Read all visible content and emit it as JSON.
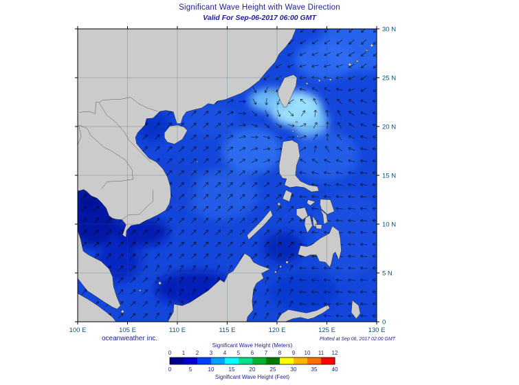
{
  "title": "Significant Wave Height with Wave Direction",
  "subtitle": "Valid For Sep-06-2017 06:00 GMT",
  "credit": "oceanweather inc.",
  "plotted_note": "Plotted at Sep 06, 2017 02:00 GMT",
  "axes": {
    "lon_ticks": [
      "100 E",
      "105 E",
      "110 E",
      "115 E",
      "120 E",
      "125 E",
      "130 E"
    ],
    "lat_ticks": [
      "30 N",
      "25 N",
      "20 N",
      "15 N",
      "10 N",
      "5 N",
      "0"
    ]
  },
  "colorbar": {
    "meters_label": "Significant Wave Height (Meters)",
    "feet_label": "Significant Wave Height (Feet)",
    "meters_ticks": [
      "0",
      "1",
      "2",
      "3",
      "4",
      "5",
      "6",
      "7",
      "8",
      "9",
      "10",
      "11",
      "12"
    ],
    "feet_ticks": [
      "0",
      "5",
      "10",
      "15",
      "20",
      "25",
      "30",
      "35",
      "40"
    ],
    "colors": [
      "#00008B",
      "#0000CD",
      "#0040FF",
      "#00A0FF",
      "#00FFFF",
      "#00E08C",
      "#00B22D",
      "#007A00",
      "#FFFF00",
      "#FFB400",
      "#FF6E00",
      "#FF0000"
    ]
  },
  "map": {
    "land_color": "#cbcbcb",
    "ocean_base_color": "#1347DC",
    "accent_text_color": "#1d1d8f",
    "axis_text_color": "#0f4d75"
  }
}
